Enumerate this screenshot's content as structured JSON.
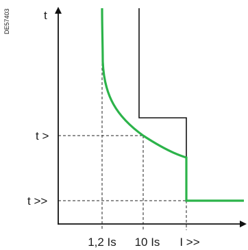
{
  "figure_ref": "DE57403",
  "axes": {
    "y_label": "t",
    "x_labels": [
      "1,2 Is",
      "10 Is",
      "I >>"
    ],
    "y_levels": [
      "t >",
      "t >>"
    ]
  },
  "colors": {
    "curve": "#2cb34a",
    "step_line": "#111111",
    "axes": "#111111",
    "dashed": "#222222",
    "text": "#1a1a1a"
  }
}
